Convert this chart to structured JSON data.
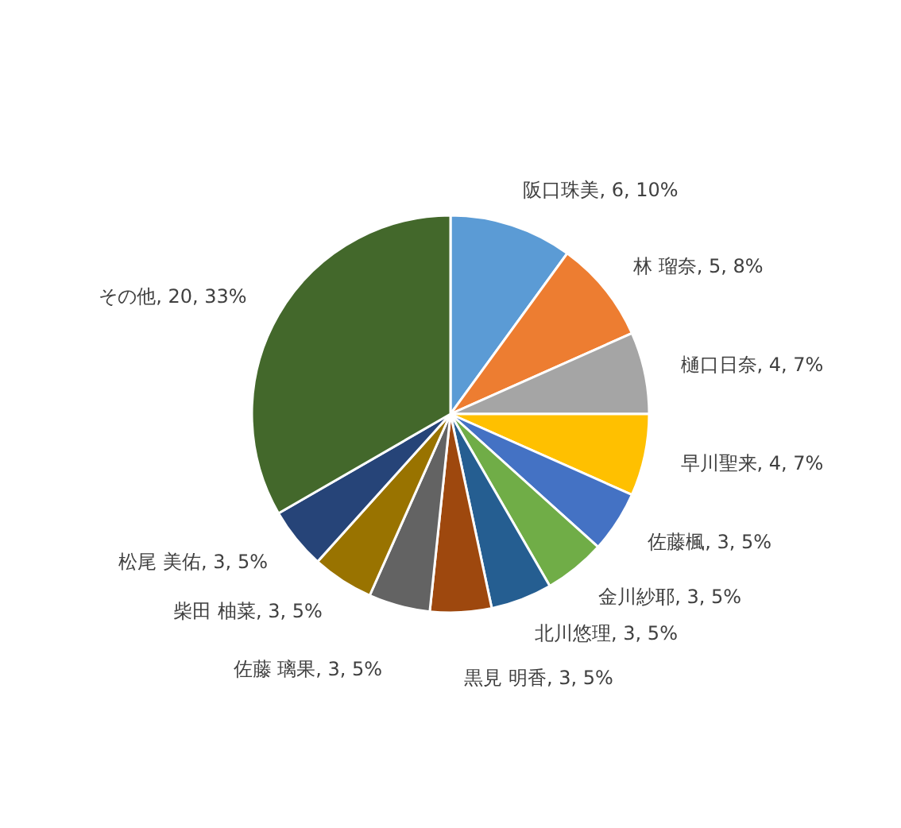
{
  "chart_data": {
    "type": "pie",
    "categories": [
      "阪口珠美",
      "林 瑠奈",
      "樋口日奈",
      "早川聖来",
      "佐藤楓",
      "金川紗耶",
      "北川悠理",
      "黒見 明香",
      "佐藤 璃果",
      "柴田 柚菜",
      "松尾 美佑",
      "その他"
    ],
    "values": [
      6,
      5,
      4,
      4,
      3,
      3,
      3,
      3,
      3,
      3,
      3,
      20
    ],
    "colors": [
      "#5b9bd5",
      "#ed7d31",
      "#a5a5a5",
      "#ffc000",
      "#4472c4",
      "#70ad47",
      "#255e91",
      "#9e480e",
      "#636363",
      "#997300",
      "#264478",
      "#43682b"
    ],
    "value_labels": [
      "6, 10%",
      "5, 8%",
      "4, 7%",
      "4, 7%",
      "3, 5%",
      "3, 5%",
      "3, 5%",
      "3, 5%",
      "3, 5%",
      "3, 5%",
      "3, 5%",
      "20, 33%"
    ],
    "legend": false
  }
}
